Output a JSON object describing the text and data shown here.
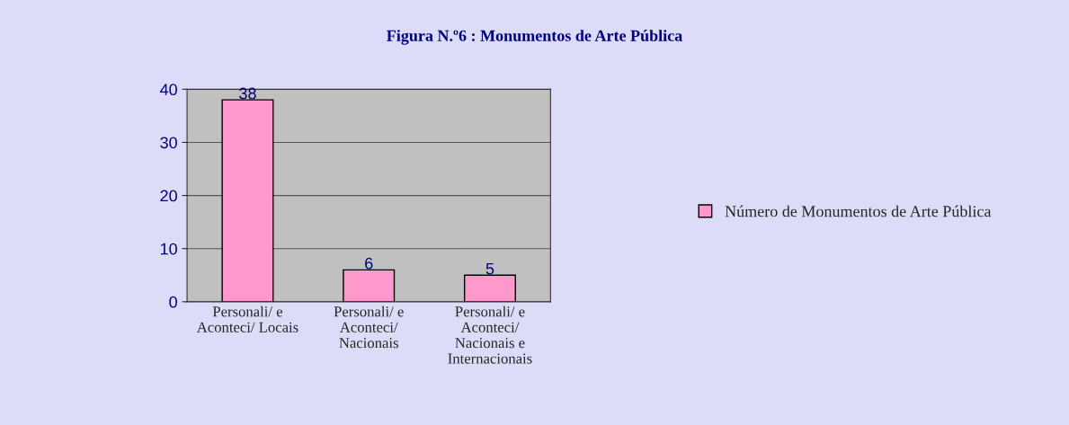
{
  "chart_data": {
    "type": "bar",
    "title": "Figura N.º6 : Monumentos de Arte Pública",
    "categories": [
      "Personali/ e\nAconteci/ Locais",
      "Personali/ e\nAconteci/\nNacionais",
      "Personali/ e\nAconteci/\nNacionais e\nInternacionais"
    ],
    "series": [
      {
        "name": "Número de Monumentos de Arte Pública",
        "color": "#ff99cc",
        "values": [
          38,
          6,
          5
        ]
      }
    ],
    "ylim": [
      0,
      40
    ],
    "yticks": [
      0,
      10,
      20,
      30,
      40
    ],
    "grid": "y",
    "data_labels": true,
    "legend": "right"
  }
}
